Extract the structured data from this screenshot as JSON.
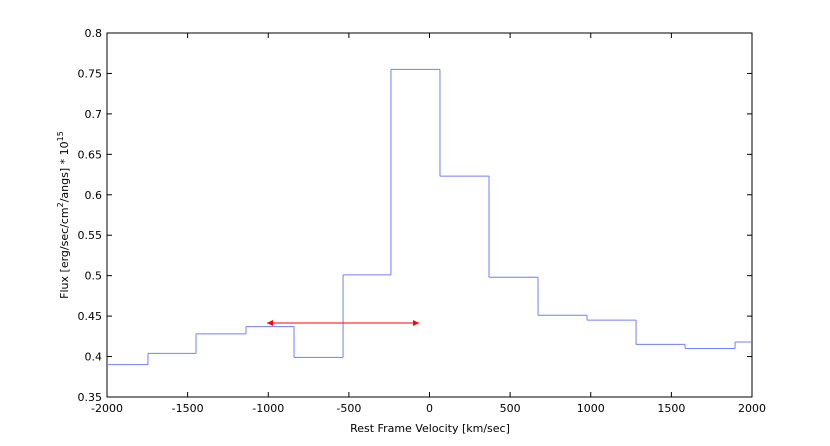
{
  "chart_data": {
    "type": "stairs",
    "xlabel": "Rest Frame Velocity [km/sec]",
    "ylabel": [
      "Flux [erg/sec/cm",
      "2",
      "/angs] * 10",
      "15"
    ],
    "x": [
      -2000,
      -1746,
      -1448,
      -1138,
      -840,
      -536,
      -239,
      65,
      369,
      673,
      977,
      1281,
      1585,
      1895
    ],
    "values": [
      0.39,
      0.404,
      0.428,
      0.437,
      0.399,
      0.501,
      0.755,
      0.623,
      0.498,
      0.451,
      0.445,
      0.415,
      0.41,
      0.418
    ],
    "color": "#6f7fff",
    "xlim": [
      -2000,
      2000
    ],
    "xticks": [
      -2000,
      -1500,
      -1000,
      -500,
      0,
      500,
      1000,
      1500,
      2000
    ],
    "ylim": [
      0.35,
      0.8
    ],
    "yticks": [
      0.35,
      0.4,
      0.45,
      0.5,
      0.55,
      0.6,
      0.65,
      0.7,
      0.75,
      0.8
    ],
    "grid": false,
    "arrow": {
      "x": [
        -1008,
        -65
      ],
      "y": 0.4415,
      "color": "#ff0000"
    }
  }
}
